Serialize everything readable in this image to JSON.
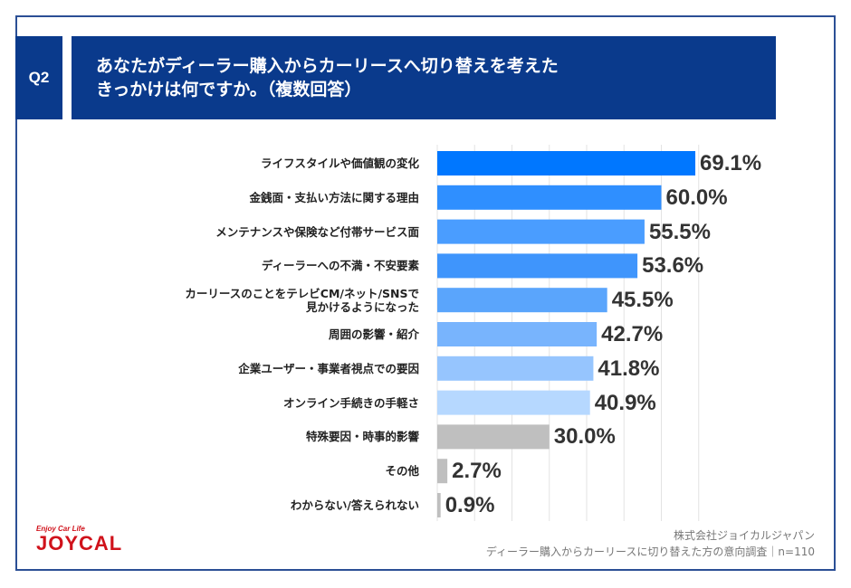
{
  "header": {
    "q_label": "Q2",
    "title_line1": "あなたがディーラー購入からカーリースへ切り替えを考えた",
    "title_line2": "きっかけは何ですか。（複数回答）",
    "color": "#0a3a8c"
  },
  "chart_data": {
    "type": "bar",
    "orientation": "horizontal",
    "xlim": [
      0,
      70
    ],
    "grid": true,
    "categories": [
      "ライフスタイルや価値観の変化",
      "金銭面・支払い方法に関する理由",
      "メンテナンスや保険など付帯サービス面",
      "ディーラーへの不満・不安要素",
      "カーリースのことをテレビCM/ネット/SNSで\n見かけるようになった",
      "周囲の影響・紹介",
      "企業ユーザー・事業者視点での要因",
      "オンライン手続きの手軽さ",
      "特殊要因・時事的影響",
      "その他",
      "わからない/答えられない"
    ],
    "values": [
      69.1,
      60.0,
      55.5,
      53.6,
      45.5,
      42.7,
      41.8,
      40.9,
      30.0,
      2.7,
      0.9
    ],
    "labels": [
      "69.1%",
      "60.0%",
      "55.5%",
      "53.6%",
      "45.5%",
      "42.7%",
      "41.8%",
      "40.9%",
      "30.0%",
      "2.7%",
      "0.9%"
    ],
    "colors": [
      "#0077ff",
      "#2f8fff",
      "#4a9dff",
      "#3f95fc",
      "#5aa5fc",
      "#78b4fd",
      "#96c5fe",
      "#b6d8ff",
      "#bfbfbf",
      "#bfbfbf",
      "#bfbfbf"
    ]
  },
  "footer": {
    "logo_tagline": "Enjoy Car Life",
    "logo_brand": "JOYCAL",
    "company": "株式会社ジョイカルジャパン",
    "survey": "ディーラー購入からカーリースに切り替えた方の意向調査｜n=110"
  }
}
